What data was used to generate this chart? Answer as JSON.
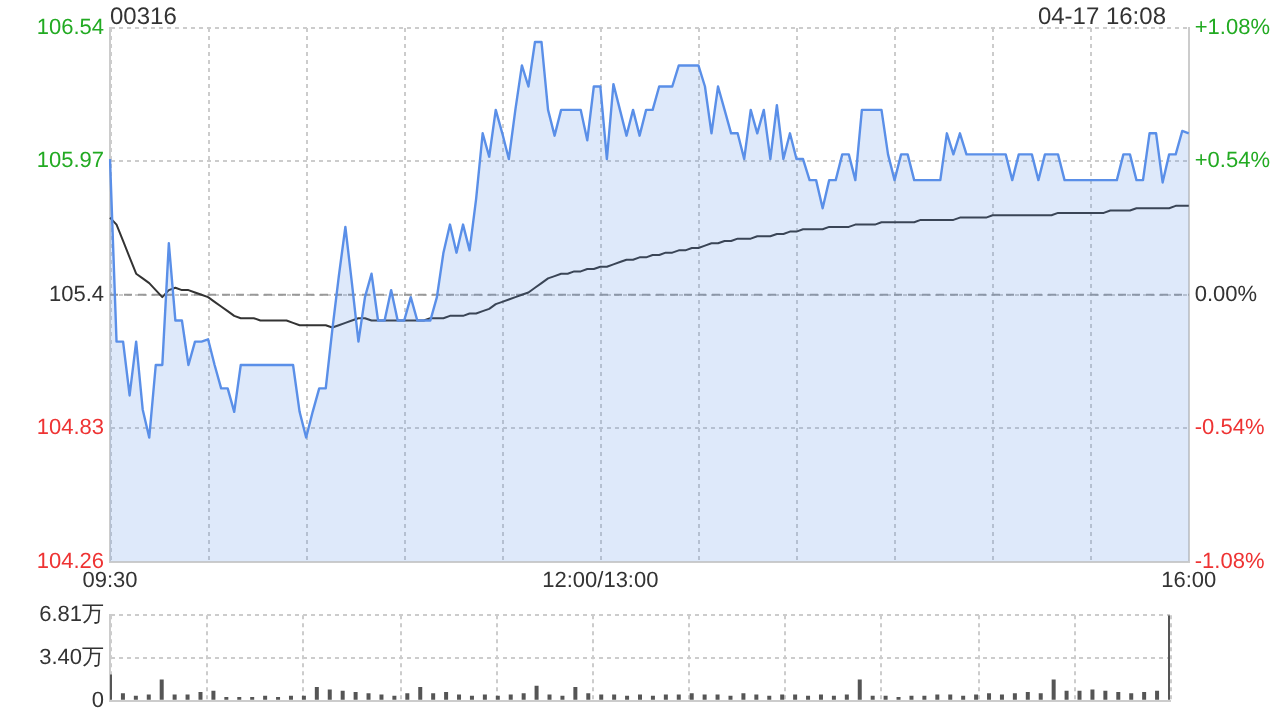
{
  "chart_data": [
    {
      "type": "line",
      "title": "00316",
      "subtitle": "04-17 16:08",
      "grid": true,
      "categories": [
        "09:30",
        null,
        null,
        null,
        null,
        null,
        null,
        null,
        null,
        null,
        null,
        null,
        null,
        null,
        null,
        null,
        null,
        null,
        null,
        null,
        null,
        null,
        null,
        null,
        null,
        null,
        null,
        null,
        null,
        null,
        null,
        null,
        null,
        null,
        null,
        null,
        null,
        null,
        null,
        null,
        null,
        null,
        null,
        null,
        null,
        null,
        null,
        null,
        null,
        null,
        null,
        null,
        null,
        null,
        null,
        null,
        null,
        null,
        null,
        null,
        null,
        null,
        null,
        null,
        null,
        null,
        null,
        null,
        null,
        null,
        null,
        null,
        null,
        null,
        null,
        "12:00/13:00",
        null,
        null,
        null,
        null,
        null,
        null,
        null,
        null,
        null,
        null,
        null,
        null,
        null,
        null,
        null,
        null,
        null,
        null,
        null,
        null,
        null,
        null,
        null,
        null,
        null,
        null,
        null,
        null,
        null,
        null,
        null,
        null,
        null,
        null,
        null,
        null,
        null,
        null,
        null,
        null,
        null,
        null,
        null,
        null,
        null,
        null,
        null,
        null,
        null,
        null,
        null,
        null,
        null,
        null,
        null,
        null,
        null,
        null,
        null,
        null,
        null,
        null,
        null,
        null,
        null,
        null,
        null,
        null,
        null,
        null,
        null,
        null,
        null,
        null,
        null,
        null,
        null,
        null,
        null,
        null,
        null,
        null,
        null,
        null,
        null,
        null,
        null,
        null,
        null,
        "16:00"
      ],
      "ylim": [
        104.26,
        106.54
      ],
      "yticks": [
        104.26,
        104.83,
        105.4,
        105.97,
        106.54
      ],
      "y2lim": [
        -1.08,
        1.08
      ],
      "y2ticks": [
        {
          "value": -1.08,
          "label": "-1.08%"
        },
        {
          "value": -0.54,
          "label": "-0.54%"
        },
        {
          "value": 0,
          "label": "0.00%"
        },
        {
          "value": 0.54,
          "label": "+0.54%"
        },
        {
          "value": 1.08,
          "label": "+1.08%"
        }
      ],
      "ref_lines": [
        {
          "axis": "y",
          "value": 105.4,
          "line_style": "dashed",
          "color": "#999999"
        }
      ],
      "series": [
        {
          "type": "area",
          "color": "#5a8fe8",
          "values": [
            105.98,
            105.2,
            105.2,
            104.97,
            105.2,
            104.91,
            104.79,
            105.1,
            105.1,
            105.62,
            105.29,
            105.29,
            105.1,
            105.2,
            105.2,
            105.21,
            105.1,
            105.0,
            105.0,
            104.9,
            105.1,
            105.1,
            105.1,
            105.1,
            105.1,
            105.1,
            105.1,
            105.1,
            105.1,
            104.9,
            104.79,
            104.9,
            105.0,
            105.0,
            105.25,
            105.48,
            105.69,
            105.45,
            105.2,
            105.39,
            105.49,
            105.29,
            105.29,
            105.42,
            105.29,
            105.29,
            105.39,
            105.29,
            105.29,
            105.29,
            105.39,
            105.58,
            105.7,
            105.58,
            105.7,
            105.59,
            105.81,
            106.09,
            105.99,
            106.19,
            106.09,
            105.98,
            106.19,
            106.38,
            106.29,
            106.48,
            106.48,
            106.19,
            106.08,
            106.19,
            106.19,
            106.19,
            106.19,
            106.06,
            106.29,
            106.29,
            105.98,
            106.3,
            106.19,
            106.08,
            106.19,
            106.08,
            106.19,
            106.19,
            106.29,
            106.29,
            106.29,
            106.38,
            106.38,
            106.38,
            106.38,
            106.29,
            106.09,
            106.29,
            106.19,
            106.09,
            106.09,
            105.98,
            106.19,
            106.09,
            106.19,
            105.98,
            106.21,
            105.98,
            106.09,
            105.98,
            105.98,
            105.89,
            105.89,
            105.77,
            105.89,
            105.89,
            106.0,
            106.0,
            105.89,
            106.19,
            106.19,
            106.19,
            106.19,
            106.0,
            105.89,
            106.0,
            106.0,
            105.89,
            105.89,
            105.89,
            105.89,
            105.89,
            106.09,
            106.0,
            106.09,
            106.0,
            106.0,
            106.0,
            106.0,
            106.0,
            106.0,
            106.0,
            105.89,
            106.0,
            106.0,
            106.0,
            105.89,
            106.0,
            106.0,
            106.0,
            105.89,
            105.89,
            105.89,
            105.89,
            105.89,
            105.89,
            105.89,
            105.89,
            105.89,
            106.0,
            106.0,
            105.89,
            105.89,
            106.09,
            106.09,
            105.88,
            106.0,
            106.0,
            106.1,
            106.09
          ]
        },
        {
          "type": "line",
          "color": "#333333",
          "values": [
            105.73,
            105.7,
            105.63,
            105.56,
            105.49,
            105.47,
            105.45,
            105.42,
            105.39,
            105.42,
            105.43,
            105.42,
            105.42,
            105.41,
            105.4,
            105.39,
            105.37,
            105.35,
            105.33,
            105.31,
            105.3,
            105.3,
            105.3,
            105.29,
            105.29,
            105.29,
            105.29,
            105.29,
            105.28,
            105.27,
            105.27,
            105.27,
            105.27,
            105.27,
            105.26,
            105.27,
            105.28,
            105.29,
            105.3,
            105.3,
            105.29,
            105.29,
            105.29,
            105.29,
            105.29,
            105.29,
            105.29,
            105.29,
            105.29,
            105.3,
            105.3,
            105.3,
            105.31,
            105.31,
            105.31,
            105.32,
            105.32,
            105.33,
            105.34,
            105.36,
            105.37,
            105.38,
            105.39,
            105.4,
            105.41,
            105.43,
            105.45,
            105.47,
            105.48,
            105.49,
            105.49,
            105.5,
            105.5,
            105.51,
            105.51,
            105.52,
            105.52,
            105.53,
            105.54,
            105.55,
            105.55,
            105.56,
            105.56,
            105.57,
            105.57,
            105.58,
            105.58,
            105.59,
            105.59,
            105.6,
            105.6,
            105.61,
            105.62,
            105.62,
            105.63,
            105.63,
            105.64,
            105.64,
            105.64,
            105.65,
            105.65,
            105.65,
            105.66,
            105.66,
            105.67,
            105.67,
            105.68,
            105.68,
            105.68,
            105.68,
            105.69,
            105.69,
            105.69,
            105.69,
            105.7,
            105.7,
            105.7,
            105.7,
            105.71,
            105.71,
            105.71,
            105.71,
            105.71,
            105.71,
            105.72,
            105.72,
            105.72,
            105.72,
            105.72,
            105.72,
            105.73,
            105.73,
            105.73,
            105.73,
            105.73,
            105.74,
            105.74,
            105.74,
            105.74,
            105.74,
            105.74,
            105.74,
            105.74,
            105.74,
            105.74,
            105.75,
            105.75,
            105.75,
            105.75,
            105.75,
            105.75,
            105.75,
            105.75,
            105.76,
            105.76,
            105.76,
            105.76,
            105.77,
            105.77,
            105.77,
            105.77,
            105.77,
            105.77,
            105.78,
            105.78,
            105.78
          ]
        }
      ]
    },
    {
      "type": "bar",
      "grid": true,
      "tick_labels": "y",
      "categories": [
        null,
        null,
        null,
        null,
        null,
        null,
        null,
        null,
        null,
        null,
        null,
        null,
        null,
        null,
        null,
        null,
        null,
        null,
        null,
        null,
        null,
        null,
        null,
        null,
        null,
        null,
        null,
        null,
        null,
        null,
        null,
        null,
        null,
        null,
        null,
        null,
        null,
        null,
        null,
        null,
        null,
        null,
        null,
        null,
        null,
        null,
        null,
        null,
        null,
        null,
        null,
        null,
        null,
        null,
        null,
        null,
        null,
        null,
        null,
        null,
        null,
        null,
        null,
        null,
        null,
        null,
        null,
        null,
        null,
        null,
        null,
        null,
        null,
        null,
        null,
        null,
        null,
        null,
        null,
        null,
        null,
        null,
        null
      ],
      "ylim": [
        0,
        6.81
      ],
      "yticks": [
        0,
        {
          "value": 3.4,
          "label": "3.40万"
        },
        {
          "value": 6.81,
          "label": "6.81万"
        }
      ],
      "series": [
        {
          "color": "#555555",
          "values": [
            2.1,
            0.6,
            0.4,
            0.5,
            1.7,
            0.5,
            0.5,
            0.7,
            0.8,
            0.3,
            0.3,
            0.3,
            0.4,
            0.3,
            0.4,
            0.4,
            1.1,
            0.9,
            0.8,
            0.7,
            0.6,
            0.5,
            0.4,
            0.6,
            1.1,
            0.6,
            0.7,
            0.5,
            0.4,
            0.5,
            0.4,
            0.5,
            0.6,
            1.2,
            0.5,
            0.4,
            1.1,
            0.6,
            0.5,
            0.5,
            0.4,
            0.5,
            0.4,
            0.5,
            0.5,
            0.6,
            0.5,
            0.5,
            0.4,
            0.6,
            0.5,
            0.4,
            0.5,
            0.5,
            0.4,
            0.5,
            0.4,
            0.5,
            1.7,
            0.4,
            0.4,
            0.3,
            0.4,
            0.4,
            0.5,
            0.5,
            0.4,
            0.5,
            0.6,
            0.5,
            0.6,
            0.7,
            0.6,
            1.7,
            0.8,
            0.8,
            0.9,
            0.8,
            0.7,
            0.6,
            0.7,
            0.8,
            6.8
          ]
        }
      ]
    }
  ]
}
